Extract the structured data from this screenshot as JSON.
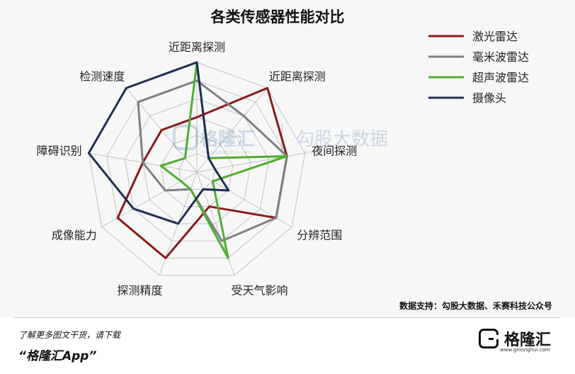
{
  "chart_data": {
    "type": "radar",
    "title": "各类传感器性能对比",
    "axes": [
      "近距离探测",
      "近距离探测",
      "夜间探测",
      "分辨范围",
      "受天气影响",
      "探测精度",
      "成像能力",
      "障碍识别",
      "检测速度"
    ],
    "levels": 6,
    "max": 6,
    "series": [
      {
        "name": "激光雷达",
        "color": "#8b1a1a",
        "values": [
          3,
          6,
          5,
          5,
          2,
          5,
          5,
          3,
          3
        ]
      },
      {
        "name": "毫米波雷达",
        "color": "#808080",
        "values": [
          5,
          4,
          5,
          5,
          4,
          1,
          2,
          3,
          5
        ]
      },
      {
        "name": "超声波雷达",
        "color": "#4fae33",
        "values": [
          6,
          1,
          5,
          1,
          5,
          1,
          1,
          2,
          1
        ]
      },
      {
        "name": "摄像头",
        "color": "#1f2f55",
        "values": [
          6,
          1,
          1,
          2,
          1,
          3,
          4,
          6,
          6
        ]
      }
    ]
  },
  "watermark": {
    "brand": "格隆汇",
    "url": "www.gelonghui.com",
    "brand2": "勾股大数据",
    "url2": "www.gogudata.com"
  },
  "source_note": "数据支持：勾股大数据、禾赛科技公众号",
  "footer": {
    "line1": "了解更多图文干货，请下载",
    "line2": "“格隆汇App”",
    "logo_text": "格隆汇",
    "logo_url": "www.gelonghui.com"
  }
}
